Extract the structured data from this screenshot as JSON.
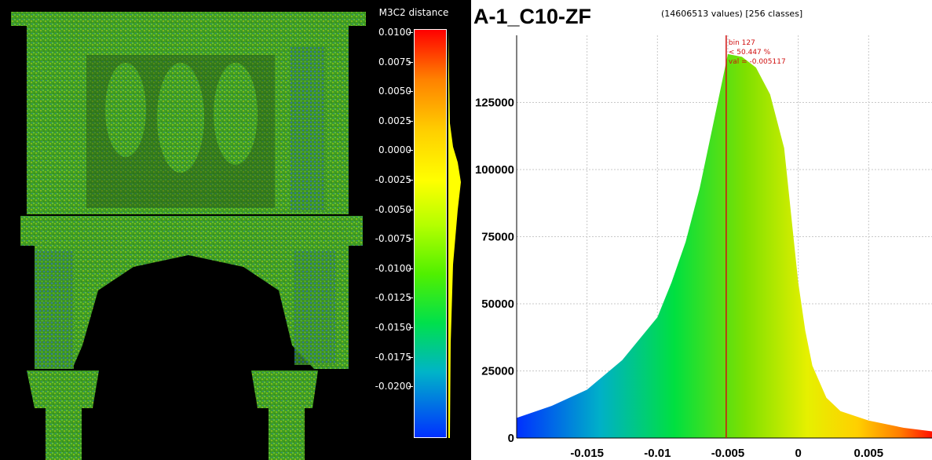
{
  "viewer": {
    "scalar_field_name": "M3C2 distance",
    "colorbar_ticks": [
      "0.0100",
      "0.0075",
      "0.0050",
      "0.0025",
      "0.0000",
      "-0.0025",
      "-0.0050",
      "-0.0075",
      "-0.0100",
      "-0.0125",
      "-0.0150",
      "-0.0175",
      "-0.0200"
    ],
    "colorbar_range": [
      -0.02,
      0.01
    ],
    "colors": {
      "background": "#000000",
      "cloud_primary": "#50c81e",
      "cloud_accent_blue": "#2a6fd6",
      "cloud_accent_yellow": "#c8d21e"
    }
  },
  "chart": {
    "title": "A-1_C10-ZF",
    "stats": "(14606513 values)  [256 classes]",
    "cursor": {
      "bin_label": "bin 127",
      "percent_label": "< 50.447 %",
      "value_label": "val = -0.005117",
      "color": "#d01010"
    }
  },
  "chart_data": {
    "type": "bar",
    "title": "A-1_C10-ZF",
    "xlabel": "",
    "ylabel": "",
    "xlim": [
      -0.02,
      0.0095
    ],
    "ylim": [
      0,
      150000
    ],
    "x_ticks": [
      "-0.015",
      "-0.01",
      "-0.005",
      "0",
      "0.005"
    ],
    "x_tick_values": [
      -0.015,
      -0.01,
      -0.005,
      0,
      0.005
    ],
    "y_ticks": [
      "0",
      "25000",
      "50000",
      "75000",
      "100000",
      "125000"
    ],
    "y_tick_values": [
      0,
      25000,
      50000,
      75000,
      100000,
      125000
    ],
    "grid": true,
    "bins": 256,
    "total_values": 14606513,
    "profile": {
      "x": [
        -0.02,
        -0.0175,
        -0.015,
        -0.0125,
        -0.01,
        -0.009,
        -0.008,
        -0.007,
        -0.006,
        -0.005,
        -0.004,
        -0.003,
        -0.002,
        -0.001,
        0,
        0.0005,
        0.001,
        0.002,
        0.003,
        0.005,
        0.0075,
        0.0095
      ],
      "y": [
        7500,
        12000,
        18000,
        29000,
        45000,
        58000,
        73000,
        93000,
        118000,
        143000,
        142000,
        138000,
        128000,
        108000,
        58000,
        40000,
        27000,
        15000,
        10000,
        6500,
        3800,
        2500
      ]
    },
    "cursor": {
      "bin": 127,
      "percent": 50.447,
      "value": -0.005117
    }
  }
}
